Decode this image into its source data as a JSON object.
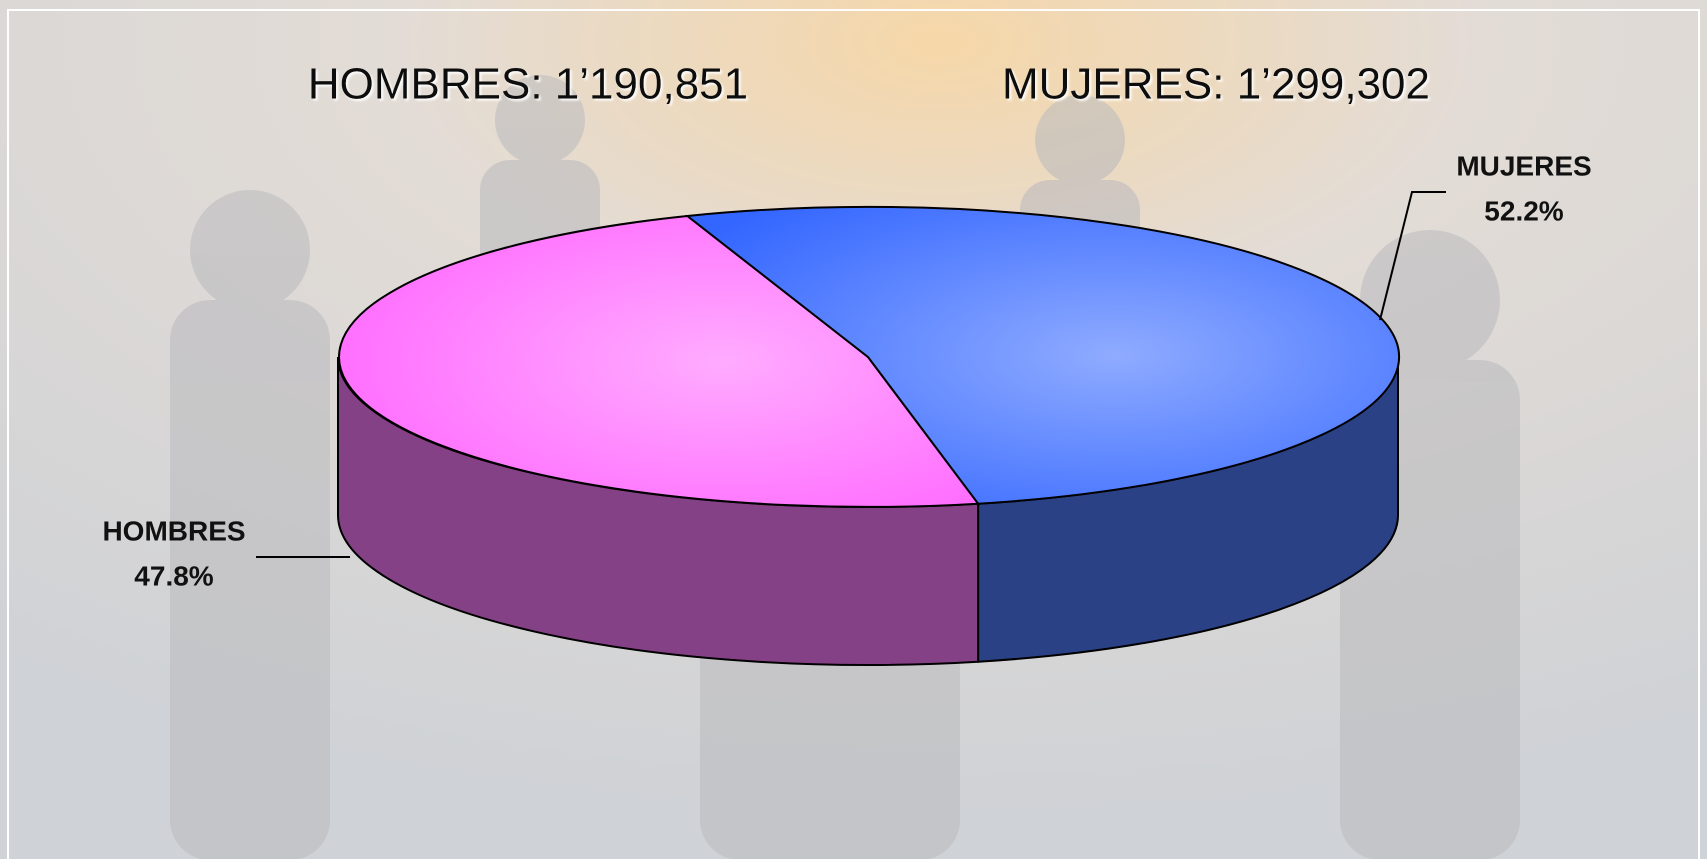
{
  "chart_data": {
    "type": "pie",
    "annotations": [
      "HOMBRES: 1’190,851",
      "MUJERES: 1’299,302"
    ],
    "categories": [
      "HOMBRES",
      "MUJERES"
    ],
    "values": [
      47.8,
      52.2
    ],
    "value_labels": [
      "47.8%",
      "52.2%"
    ],
    "colors": [
      "#ff66ff",
      "#3366ff"
    ]
  }
}
